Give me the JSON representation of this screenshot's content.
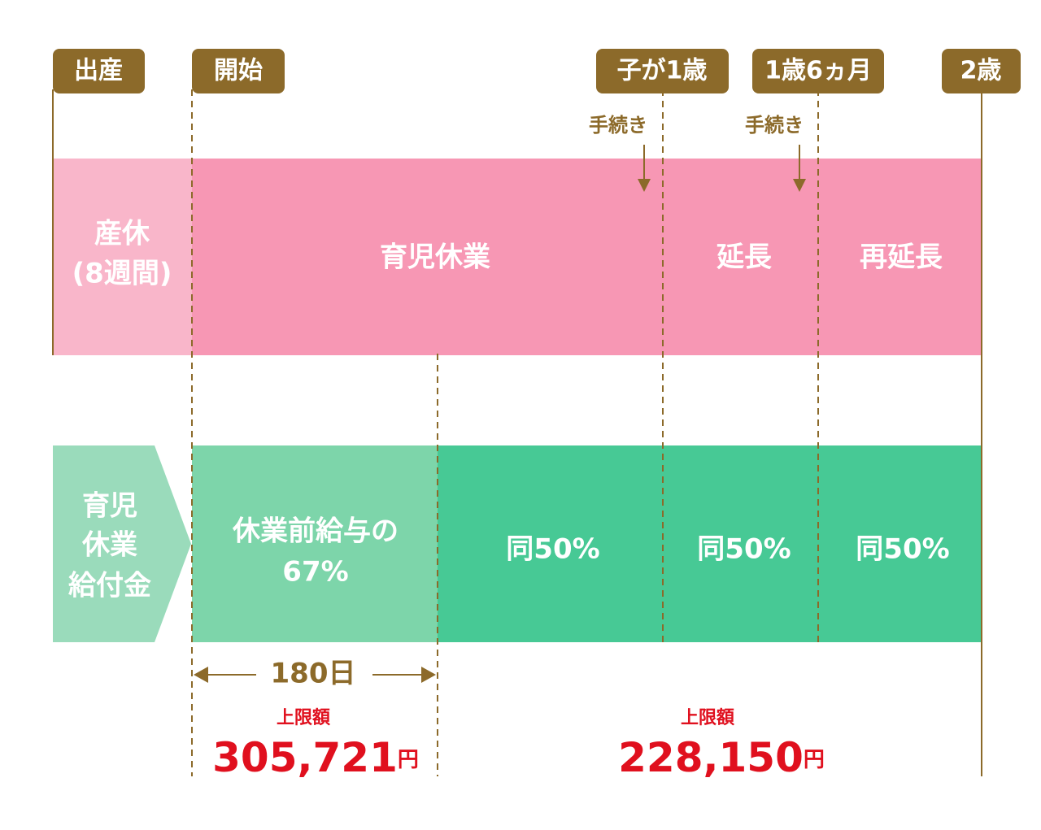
{
  "milestones": [
    "出産",
    "開始",
    "子が1歳",
    "1歳6ヵ月",
    "2歳"
  ],
  "procedures": [
    "手続き",
    "手続き"
  ],
  "leave": {
    "maternity": [
      "産休",
      "(8週間)"
    ],
    "childcare": "育児休業",
    "extension": "延長",
    "re_extension": "再延長"
  },
  "benefit": {
    "label": [
      "育児",
      "休業",
      "給付金"
    ],
    "first": [
      "休業前給与の",
      "67%"
    ],
    "rates": [
      "同50%",
      "同50%",
      "同50%"
    ]
  },
  "duration": "180日",
  "caps": [
    {
      "label": "上限額",
      "amount": "305,721",
      "unit": "円"
    },
    {
      "label": "上限額",
      "amount": "228,150",
      "unit": "円"
    }
  ]
}
